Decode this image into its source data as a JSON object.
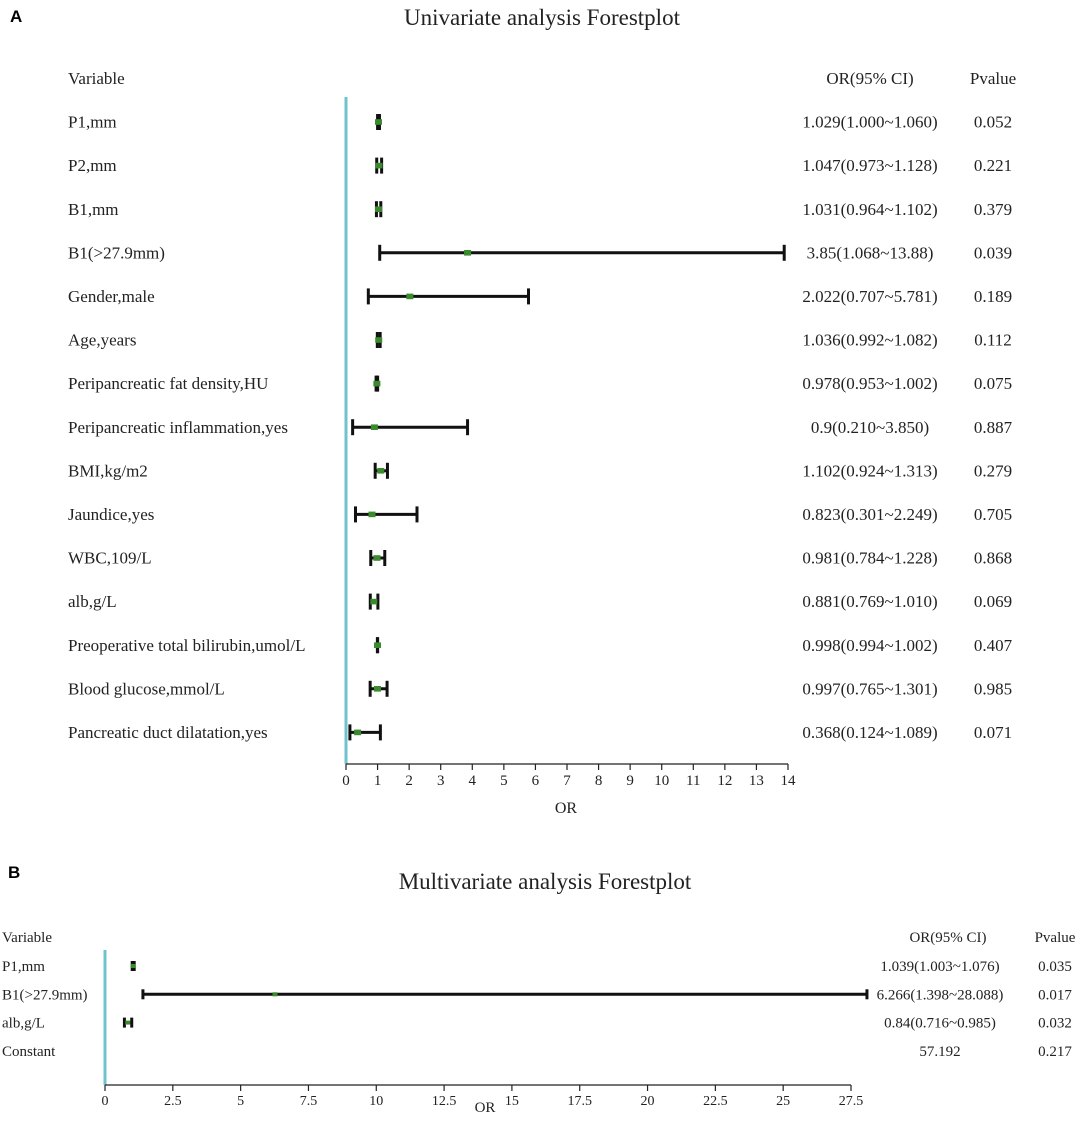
{
  "colors": {
    "axis_line": "#6fc3cc",
    "ci_line": "#111111",
    "point": "#3c8a2e",
    "text": "#222222"
  },
  "chart_data": [
    {
      "panel_label": "A",
      "type": "forest",
      "title": "Univariate analysis Forestplot",
      "header": {
        "variable": "Variable",
        "or_ci": "OR(95% CI)",
        "pvalue": "Pvalue"
      },
      "xlabel": "OR",
      "xlim": [
        0,
        14
      ],
      "xticks": [
        0,
        1,
        2,
        3,
        4,
        5,
        6,
        7,
        8,
        9,
        10,
        11,
        12,
        13,
        14
      ],
      "xtick_labels": [
        "0",
        "1",
        "2",
        "3",
        "4",
        "5",
        "6",
        "7",
        "8",
        "9",
        "10",
        "11",
        "12",
        "13",
        "14"
      ],
      "rows": [
        {
          "variable": "P1,mm",
          "or": 1.029,
          "lower": 1.0,
          "upper": 1.06,
          "or_ci": "1.029(1.000~1.060)",
          "pvalue": "0.052"
        },
        {
          "variable": "P2,mm",
          "or": 1.047,
          "lower": 0.973,
          "upper": 1.128,
          "or_ci": "1.047(0.973~1.128)",
          "pvalue": "0.221"
        },
        {
          "variable": "B1,mm",
          "or": 1.031,
          "lower": 0.964,
          "upper": 1.102,
          "or_ci": "1.031(0.964~1.102)",
          "pvalue": "0.379"
        },
        {
          "variable": "B1(>27.9mm)",
          "or": 3.85,
          "lower": 1.068,
          "upper": 13.88,
          "or_ci": "3.85(1.068~13.88)",
          "pvalue": "0.039"
        },
        {
          "variable": "Gender,male",
          "or": 2.022,
          "lower": 0.707,
          "upper": 5.781,
          "or_ci": "2.022(0.707~5.781)",
          "pvalue": "0.189"
        },
        {
          "variable": "Age,years",
          "or": 1.036,
          "lower": 0.992,
          "upper": 1.082,
          "or_ci": "1.036(0.992~1.082)",
          "pvalue": "0.112"
        },
        {
          "variable": "Peripancreatic fat density,HU",
          "or": 0.978,
          "lower": 0.953,
          "upper": 1.002,
          "or_ci": "0.978(0.953~1.002)",
          "pvalue": "0.075"
        },
        {
          "variable": "Peripancreatic inflammation,yes",
          "or": 0.9,
          "lower": 0.21,
          "upper": 3.85,
          "or_ci": "0.9(0.210~3.850)",
          "pvalue": "0.887"
        },
        {
          "variable": "BMI,kg/m2",
          "or": 1.102,
          "lower": 0.924,
          "upper": 1.313,
          "or_ci": "1.102(0.924~1.313)",
          "pvalue": "0.279"
        },
        {
          "variable": "Jaundice,yes",
          "or": 0.823,
          "lower": 0.301,
          "upper": 2.249,
          "or_ci": "0.823(0.301~2.249)",
          "pvalue": "0.705"
        },
        {
          "variable": "WBC,109/L",
          "or": 0.981,
          "lower": 0.784,
          "upper": 1.228,
          "or_ci": "0.981(0.784~1.228)",
          "pvalue": "0.868"
        },
        {
          "variable": "alb,g/L",
          "or": 0.881,
          "lower": 0.769,
          "upper": 1.01,
          "or_ci": "0.881(0.769~1.010)",
          "pvalue": "0.069"
        },
        {
          "variable": "Preoperative total bilirubin,umol/L",
          "or": 0.998,
          "lower": 0.994,
          "upper": 1.002,
          "or_ci": "0.998(0.994~1.002)",
          "pvalue": "0.407"
        },
        {
          "variable": "Blood glucose,mmol/L",
          "or": 0.997,
          "lower": 0.765,
          "upper": 1.301,
          "or_ci": "0.997(0.765~1.301)",
          "pvalue": "0.985"
        },
        {
          "variable": "Pancreatic duct dilatation,yes",
          "or": 0.368,
          "lower": 0.124,
          "upper": 1.089,
          "or_ci": "0.368(0.124~1.089)",
          "pvalue": "0.071"
        }
      ]
    },
    {
      "panel_label": "B",
      "type": "forest",
      "title": "Multivariate analysis Forestplot",
      "header": {
        "variable": "Variable",
        "or_ci": "OR(95% CI)",
        "pvalue": "Pvalue"
      },
      "xlabel": "OR",
      "xlim": [
        0,
        27.5
      ],
      "xticks": [
        0,
        2.5,
        5,
        7.5,
        10,
        12.5,
        15,
        17.5,
        20,
        22.5,
        25,
        27.5
      ],
      "xtick_labels": [
        "0",
        "2.5",
        "5",
        "7.5",
        "10",
        "12.5",
        "15",
        "17.5",
        "20",
        "22.5",
        "25",
        "27.5"
      ],
      "rows": [
        {
          "variable": "P1,mm",
          "or": 1.039,
          "lower": 1.003,
          "upper": 1.076,
          "or_ci": "1.039(1.003~1.076)",
          "pvalue": "0.035"
        },
        {
          "variable": "B1(>27.9mm)",
          "or": 6.266,
          "lower": 1.398,
          "upper": 28.088,
          "or_ci": "6.266(1.398~28.088)",
          "pvalue": "0.017"
        },
        {
          "variable": "alb,g/L",
          "or": 0.84,
          "lower": 0.716,
          "upper": 0.985,
          "or_ci": "0.84(0.716~0.985)",
          "pvalue": "0.032"
        },
        {
          "variable": "Constant",
          "or": null,
          "lower": null,
          "upper": null,
          "or_ci": "57.192",
          "pvalue": "0.217"
        }
      ]
    }
  ]
}
